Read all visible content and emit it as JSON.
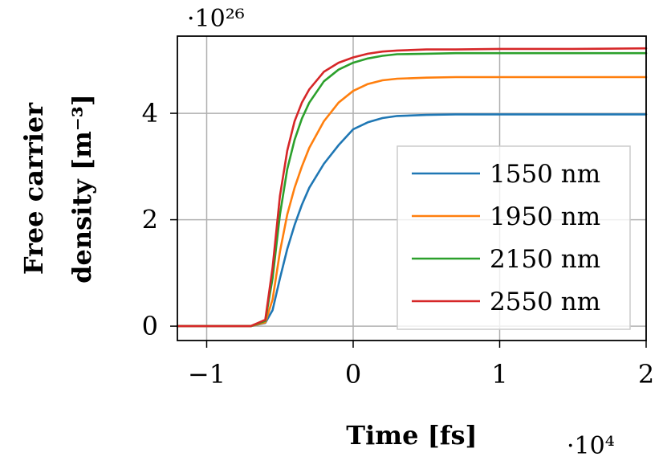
{
  "chart_data": {
    "type": "line",
    "title": "",
    "xlabel": "Time [fs]",
    "ylabel_line1": "Free carrier",
    "ylabel_line2": "density [m⁻³]",
    "x_multiplier": "·10⁴",
    "y_multiplier": "·10²⁶",
    "xlim": [
      -1.2,
      2
    ],
    "ylim": [
      -0.27,
      5.45
    ],
    "x_ticks": [
      -1,
      0,
      1,
      2
    ],
    "x_tick_labels": [
      "−1",
      "0",
      "1",
      "2"
    ],
    "y_ticks": [
      0,
      2,
      4
    ],
    "y_tick_labels": [
      "0",
      "2",
      "4"
    ],
    "grid": true,
    "legend_position": "right",
    "x_units_note": "x in units of 10^4 fs, y in units of 10^26 m^-3",
    "series": [
      {
        "name": "1550 nm",
        "color": "#1f77b4",
        "x": [
          -1.2,
          -0.7,
          -0.6,
          -0.55,
          -0.5,
          -0.45,
          -0.4,
          -0.35,
          -0.3,
          -0.2,
          -0.1,
          0.0,
          0.1,
          0.2,
          0.3,
          0.5,
          0.7,
          1.0,
          1.5,
          2.0
        ],
        "y": [
          0,
          0,
          0.06,
          0.3,
          0.9,
          1.45,
          1.9,
          2.28,
          2.6,
          3.05,
          3.4,
          3.7,
          3.83,
          3.91,
          3.95,
          3.97,
          3.98,
          3.98,
          3.98,
          3.98
        ]
      },
      {
        "name": "1950 nm",
        "color": "#ff7f0e",
        "x": [
          -1.2,
          -0.7,
          -0.6,
          -0.55,
          -0.5,
          -0.45,
          -0.4,
          -0.35,
          -0.3,
          -0.2,
          -0.1,
          0.0,
          0.1,
          0.2,
          0.3,
          0.5,
          0.7,
          1.0,
          1.5,
          2.0
        ],
        "y": [
          0,
          0,
          0.07,
          0.5,
          1.4,
          2.1,
          2.6,
          3.0,
          3.35,
          3.85,
          4.2,
          4.42,
          4.55,
          4.62,
          4.65,
          4.67,
          4.68,
          4.68,
          4.68,
          4.68
        ]
      },
      {
        "name": "2150 nm",
        "color": "#2ca02c",
        "x": [
          -1.2,
          -0.7,
          -0.6,
          -0.55,
          -0.5,
          -0.45,
          -0.4,
          -0.35,
          -0.3,
          -0.2,
          -0.1,
          0.0,
          0.1,
          0.2,
          0.3,
          0.5,
          0.7,
          1.0,
          1.5,
          2.0
        ],
        "y": [
          0,
          0,
          0.1,
          0.9,
          2.1,
          2.95,
          3.5,
          3.9,
          4.2,
          4.6,
          4.82,
          4.95,
          5.03,
          5.08,
          5.11,
          5.12,
          5.13,
          5.13,
          5.13,
          5.13
        ]
      },
      {
        "name": "2550 nm",
        "color": "#d62728",
        "x": [
          -1.2,
          -0.7,
          -0.6,
          -0.55,
          -0.5,
          -0.45,
          -0.4,
          -0.35,
          -0.3,
          -0.2,
          -0.1,
          0.0,
          0.1,
          0.2,
          0.3,
          0.5,
          0.7,
          1.0,
          1.5,
          2.0
        ],
        "y": [
          0,
          0,
          0.12,
          1.1,
          2.45,
          3.3,
          3.85,
          4.2,
          4.45,
          4.78,
          4.95,
          5.05,
          5.12,
          5.16,
          5.18,
          5.2,
          5.2,
          5.21,
          5.21,
          5.22
        ]
      }
    ]
  }
}
